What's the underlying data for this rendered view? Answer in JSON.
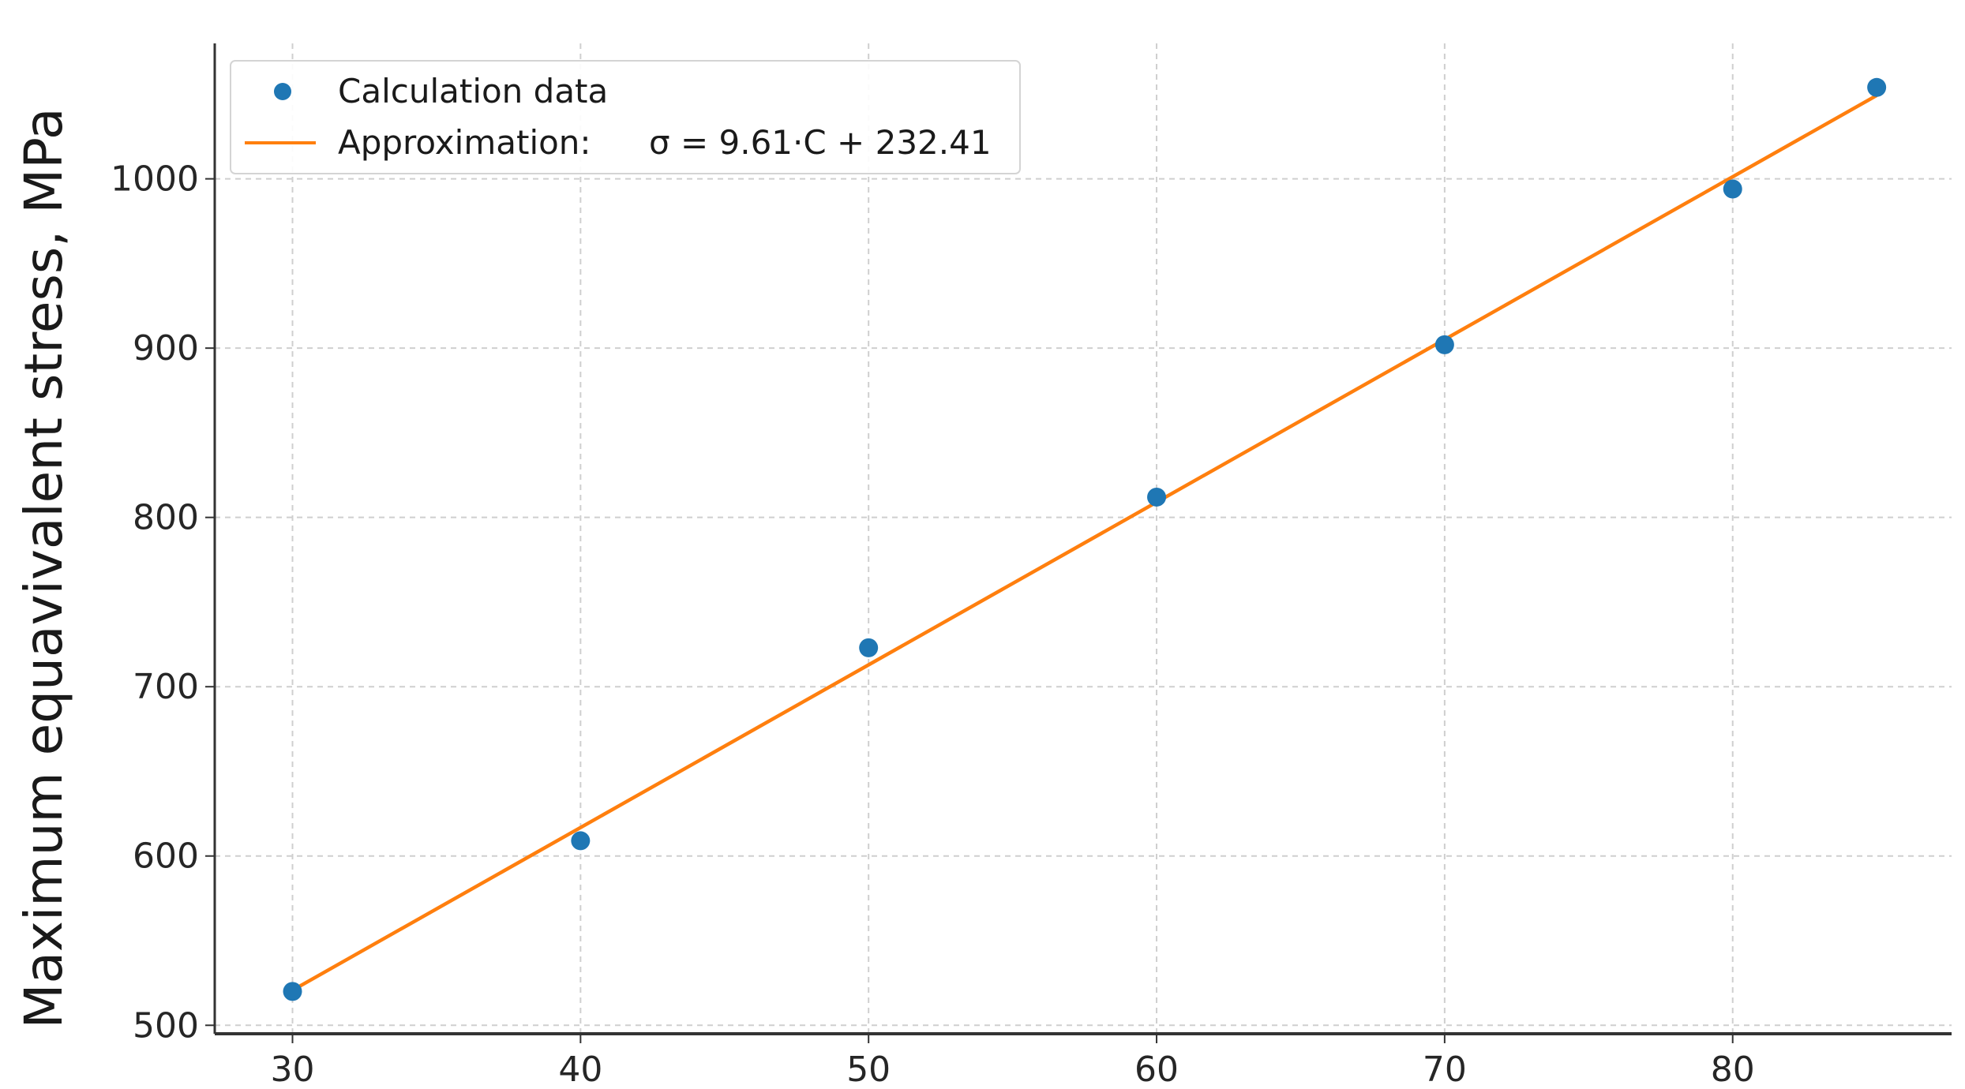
{
  "chart_data": {
    "type": "scatter",
    "title": "",
    "xlabel": "",
    "ylabel": "Maximum equavivalent stress, MPa",
    "xlim": [
      27.3,
      87.6
    ],
    "ylim": [
      495,
      1080
    ],
    "x_ticks": [
      30,
      40,
      50,
      60,
      70,
      80
    ],
    "y_ticks": [
      500,
      600,
      700,
      800,
      900,
      1000
    ],
    "grid": true,
    "legend_position": "top-left",
    "series": [
      {
        "name": "Calculation data",
        "kind": "scatter",
        "color": "#1f77b4",
        "x": [
          30,
          40,
          50,
          60,
          70,
          80,
          85
        ],
        "y": [
          520,
          609,
          723,
          812,
          902,
          994,
          1054
        ]
      },
      {
        "name": "Approximation:",
        "kind": "line",
        "color": "#ff7f0e",
        "equation": "σ = 9.61·C + 232.41",
        "slope": 9.61,
        "intercept": 232.41,
        "x": [
          30,
          85
        ]
      }
    ]
  }
}
